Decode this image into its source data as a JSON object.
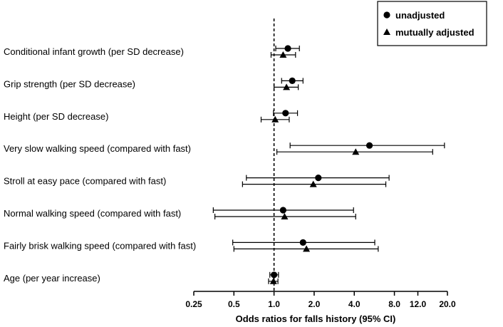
{
  "chart_data": {
    "type": "forest",
    "title": "",
    "xlabel": "Odds ratios for falls history (95% CI)",
    "x_scale": "log",
    "xlim": [
      0.25,
      20.0
    ],
    "reference_line": 1.0,
    "x_ticks": [
      {
        "value": 0.25,
        "label": "0.25"
      },
      {
        "value": 0.5,
        "label": "0.5"
      },
      {
        "value": 1.0,
        "label": "1.0"
      },
      {
        "value": 2.0,
        "label": "2.0"
      },
      {
        "value": 4.0,
        "label": "4.0"
      },
      {
        "value": 8.0,
        "label": "8.0"
      },
      {
        "value": 12.0,
        "label": "12.0"
      },
      {
        "value": 20.0,
        "label": "20.0"
      }
    ],
    "legend": {
      "placement": "top-right",
      "entries": [
        {
          "name": "unadjusted",
          "marker": "circle"
        },
        {
          "name": "mutually adjusted",
          "marker": "triangle"
        }
      ]
    },
    "categories": [
      "Conditional infant growth (per SD decrease)",
      "Grip strength (per SD decrease)",
      "Height (per SD decrease)",
      "Very slow walking speed (compared with fast)",
      "Stroll at easy pace (compared with fast)",
      "Normal walking speed (compared with fast)",
      "Fairly brisk walking speed (compared with fast)",
      "Age (per year increase)"
    ],
    "series": [
      {
        "name": "unadjusted",
        "marker": "circle",
        "estimates": [
          1.27,
          1.37,
          1.22,
          5.2,
          2.15,
          1.17,
          1.65,
          1.0
        ],
        "ci_low": [
          1.03,
          1.14,
          0.99,
          1.32,
          0.62,
          0.35,
          0.49,
          0.93
        ],
        "ci_high": [
          1.55,
          1.65,
          1.5,
          19.0,
          7.3,
          3.95,
          5.7,
          1.08
        ]
      },
      {
        "name": "mutually adjusted",
        "marker": "triangle",
        "estimates": [
          1.17,
          1.24,
          1.02,
          4.1,
          1.97,
          1.2,
          1.75,
          0.99
        ],
        "ci_low": [
          0.95,
          1.0,
          0.8,
          1.05,
          0.58,
          0.36,
          0.5,
          0.91
        ],
        "ci_high": [
          1.45,
          1.52,
          1.3,
          15.5,
          6.9,
          4.1,
          6.05,
          1.07
        ]
      }
    ]
  }
}
